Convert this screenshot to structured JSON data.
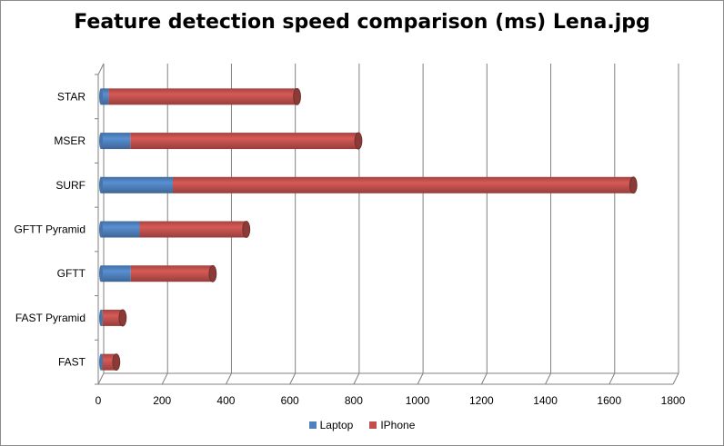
{
  "chart_data": {
    "type": "bar",
    "orientation": "horizontal",
    "stacked": true,
    "title": "Feature detection speed comparison (ms) Lena.jpg",
    "categories": [
      "FAST",
      "FAST Pyramid",
      "GFTT",
      "GFTT Pyramid",
      "SURF",
      "MSER",
      "STAR"
    ],
    "series": [
      {
        "name": "Laptop",
        "color": "#4f81bd",
        "values": [
          4,
          5,
          93,
          121,
          225,
          92,
          24
        ]
      },
      {
        "name": "IPhone",
        "color": "#c0504d",
        "values": [
          44,
          63,
          257,
          334,
          1442,
          714,
          590
        ]
      }
    ],
    "xlim": [
      0,
      1800
    ],
    "xticks": [
      0,
      200,
      400,
      600,
      800,
      1000,
      1200,
      1400,
      1600,
      1800
    ],
    "grid": true,
    "legend_position": "bottom"
  }
}
